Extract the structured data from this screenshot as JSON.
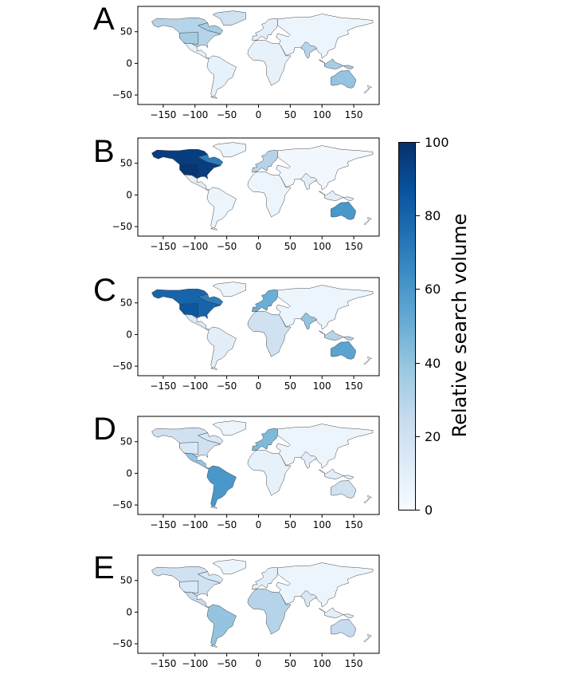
{
  "figure": {
    "colorbar": {
      "label": "Relative search volume",
      "min": 0,
      "max": 100,
      "ticks": [
        "0",
        "20",
        "40",
        "60",
        "80",
        "100"
      ],
      "colormap": [
        "#f7fbff",
        "#deebf7",
        "#c6dbef",
        "#9ecae1",
        "#6baed6",
        "#4292c6",
        "#2171b5",
        "#08519c",
        "#08306b"
      ]
    },
    "axes": {
      "x_ticks": [
        "−150",
        "−100",
        "−50",
        "0",
        "50",
        "100",
        "150"
      ],
      "y_ticks": [
        "50",
        "0",
        "−50"
      ],
      "xlim": [
        -190,
        190
      ],
      "ylim": [
        -65,
        90
      ]
    },
    "panels": [
      {
        "letter": "A",
        "regions": {
          "north_america": 30,
          "canada_east": 35,
          "us_west": 35,
          "mexico_central_america": 8,
          "greenland": 20,
          "south_america": 8,
          "europe_west": 10,
          "africa": 8,
          "asia": 5,
          "india": 30,
          "southeast_asia": 35,
          "australia": 40
        }
      },
      {
        "letter": "B",
        "regions": {
          "north_america": 95,
          "canada_east": 70,
          "us_west": 98,
          "mexico_central_america": 10,
          "greenland": 5,
          "south_america": 5,
          "europe_west": 30,
          "africa": 5,
          "asia": 3,
          "india": 10,
          "southeast_asia": 10,
          "australia": 60
        }
      },
      {
        "letter": "C",
        "regions": {
          "north_america": 80,
          "canada_east": 70,
          "us_west": 85,
          "mexico_central_america": 15,
          "greenland": 5,
          "south_america": 10,
          "europe_west": 50,
          "africa": 20,
          "asia": 5,
          "india": 40,
          "southeast_asia": 30,
          "australia": 55
        }
      },
      {
        "letter": "D",
        "regions": {
          "north_america": 20,
          "canada_east": 15,
          "us_west": 15,
          "mexico_central_america": 40,
          "greenland": 5,
          "south_america": 60,
          "europe_west": 45,
          "africa": 8,
          "asia": 5,
          "india": 10,
          "southeast_asia": 10,
          "australia": 20
        }
      },
      {
        "letter": "E",
        "regions": {
          "north_america": 20,
          "canada_east": 15,
          "us_west": 15,
          "mexico_central_america": 25,
          "greenland": 5,
          "south_america": 40,
          "europe_west": 10,
          "africa": 30,
          "asia": 5,
          "india": 15,
          "southeast_asia": 10,
          "australia": 25
        }
      }
    ]
  }
}
